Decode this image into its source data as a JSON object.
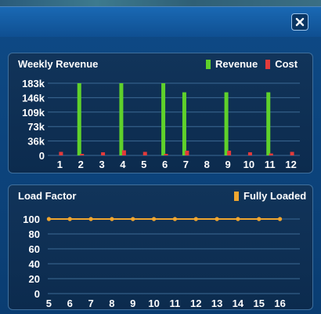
{
  "window": {
    "title": ""
  },
  "colors": {
    "revenue": "#5fd12b",
    "cost": "#e23b3b",
    "load": "#f0a630",
    "grid": "#3c6a94"
  },
  "icons": {
    "close": "close-icon"
  },
  "chart_data": [
    {
      "type": "bar",
      "title": "Weekly Revenue",
      "categories": [
        "1",
        "2",
        "3",
        "4",
        "5",
        "6",
        "7",
        "8",
        "9",
        "10",
        "11",
        "12"
      ],
      "ytick_labels": [
        "183k",
        "146k",
        "109k",
        "73k",
        "36k",
        "0"
      ],
      "ylim": [
        0,
        183000
      ],
      "legend": "top-right",
      "series": [
        {
          "name": "Revenue",
          "values": [
            0,
            183000,
            0,
            183000,
            0,
            183000,
            160000,
            0,
            160000,
            0,
            160000,
            0
          ]
        },
        {
          "name": "Cost",
          "values": [
            9000,
            1500,
            8000,
            13000,
            9000,
            1500,
            12000,
            0,
            12000,
            8000,
            5000,
            9000
          ]
        }
      ]
    },
    {
      "type": "line",
      "title": "Load Factor",
      "x": [
        "5",
        "6",
        "7",
        "8",
        "9",
        "10",
        "11",
        "12",
        "13",
        "14",
        "15",
        "16"
      ],
      "ytick_labels": [
        "100",
        "80",
        "60",
        "40",
        "20",
        "0"
      ],
      "ylim": [
        0,
        100
      ],
      "legend": "top-right",
      "series": [
        {
          "name": "Fully Loaded",
          "values": [
            100,
            100,
            100,
            100,
            100,
            100,
            100,
            100,
            100,
            100,
            100,
            100
          ]
        }
      ]
    }
  ]
}
